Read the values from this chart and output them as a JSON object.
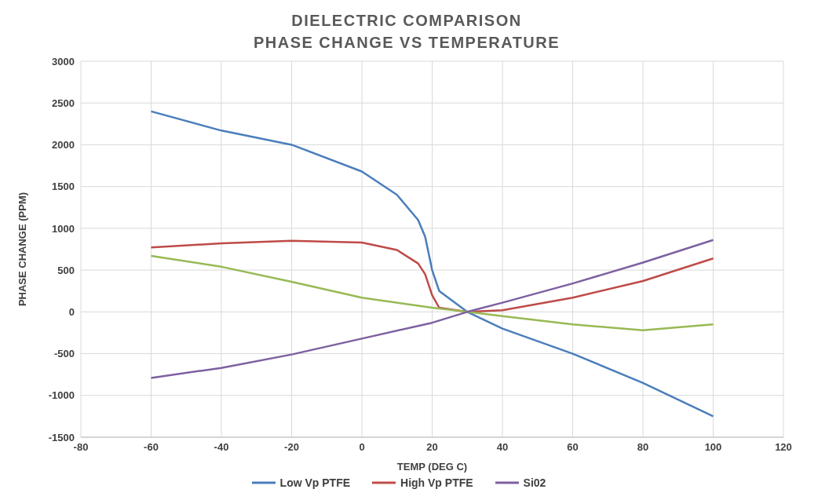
{
  "chart_data": {
    "type": "line",
    "title": "DIELECTRIC COMPARISON",
    "subtitle": "PHASE CHANGE VS TEMPERATURE",
    "xlabel": "TEMP (DEG C)",
    "ylabel": "PHASE CHANGE (PPM)",
    "xlim": [
      -80,
      120
    ],
    "xticks": [
      -80,
      -60,
      -40,
      -20,
      0,
      20,
      40,
      60,
      80,
      100,
      120
    ],
    "ylim": [
      -1500,
      3000
    ],
    "yticks": [
      -1500,
      -1000,
      -500,
      0,
      500,
      1000,
      1500,
      2000,
      2500,
      3000
    ],
    "grid": true,
    "legend": "bottom",
    "marker": "none",
    "line_style": "solid",
    "series": [
      {
        "name": "Low Vp PTFE",
        "color": "#4a7ebb",
        "x": [
          -60,
          -40,
          -20,
          0,
          10,
          16,
          18,
          20,
          22,
          30,
          40,
          60,
          80,
          100
        ],
        "values": [
          2400,
          2170,
          2000,
          1680,
          1400,
          1100,
          900,
          500,
          250,
          0,
          -200,
          -500,
          -850,
          -1250
        ]
      },
      {
        "name": "High Vp PTFE",
        "color": "#be4b48",
        "x": [
          -60,
          -40,
          -20,
          0,
          10,
          16,
          18,
          20,
          22,
          30,
          40,
          60,
          80,
          100
        ],
        "values": [
          770,
          820,
          850,
          830,
          740,
          580,
          450,
          200,
          50,
          0,
          20,
          170,
          370,
          640
        ]
      },
      {
        "color": "#98b954",
        "x": [
          -60,
          -40,
          -20,
          0,
          20,
          30,
          40,
          60,
          80,
          100
        ],
        "values": [
          670,
          540,
          360,
          170,
          50,
          0,
          -50,
          -150,
          -220,
          -150
        ]
      },
      {
        "name": "Si02",
        "color": "#7d60a0",
        "x": [
          -60,
          -40,
          -20,
          0,
          20,
          30,
          40,
          60,
          80,
          100
        ],
        "values": [
          -790,
          -670,
          -510,
          -320,
          -130,
          0,
          110,
          340,
          590,
          860
        ]
      }
    ]
  }
}
